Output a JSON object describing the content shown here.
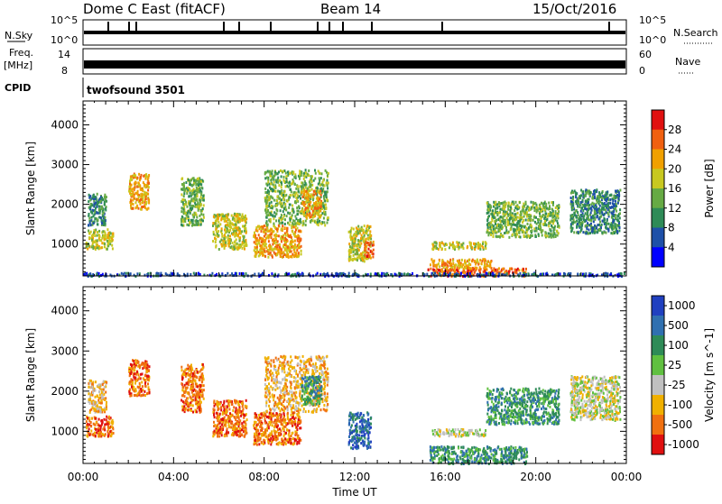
{
  "header": {
    "station": "Dome C East (fitACF)",
    "beam": "Beam 14",
    "date": "15/Oct/2016"
  },
  "strip_labels": {
    "nsky": "N.Sky",
    "nsky_top": "10^5",
    "nsky_bottom": "10^0",
    "nsearch": "N.Search",
    "nsearch_top": "10^5",
    "nsearch_bottom": "10^0",
    "freq_line1": "Freq.",
    "freq_line2": "[MHz]",
    "freq_top": "14",
    "freq_bottom": "8",
    "nave": "Nave",
    "nave_top": "60",
    "nave_bottom": "0",
    "cpid": "CPID",
    "cpid_value": "twofsound 3501"
  },
  "chart_data": [
    {
      "type": "heatmap",
      "name": "power-panel",
      "xlabel": "",
      "ylabel": "Slant Range [km]",
      "xlim": [
        0,
        24
      ],
      "ylim": [
        200,
        4600
      ],
      "y_ticks": [
        "1000",
        "2000",
        "3000",
        "4000"
      ],
      "colorbar_label": "Power [dB]",
      "colorbar_ticks": [
        "4",
        "8",
        "12",
        "16",
        "20",
        "24",
        "28"
      ],
      "colors": [
        "#0000ff",
        "#1e50a8",
        "#2e8b57",
        "#66aa44",
        "#c8c820",
        "#f0a000",
        "#f06010",
        "#e01010"
      ],
      "blobs": [
        {
          "t0": 0.1,
          "t1": 1.3,
          "r0": 900,
          "r1": 1400,
          "v": 4
        },
        {
          "t0": 0.2,
          "t1": 1.0,
          "r0": 1500,
          "r1": 2300,
          "v": 2
        },
        {
          "t0": 2.0,
          "t1": 2.9,
          "r0": 1900,
          "r1": 2800,
          "v": 5
        },
        {
          "t0": 4.3,
          "t1": 5.3,
          "r0": 1500,
          "r1": 2700,
          "v": 3
        },
        {
          "t0": 5.7,
          "t1": 7.2,
          "r0": 900,
          "r1": 1800,
          "v": 4
        },
        {
          "t0": 7.5,
          "t1": 9.6,
          "r0": 700,
          "r1": 1500,
          "v": 5
        },
        {
          "t0": 8.0,
          "t1": 10.8,
          "r0": 1500,
          "r1": 2900,
          "v": 3
        },
        {
          "t0": 9.6,
          "t1": 10.5,
          "r0": 1700,
          "r1": 2400,
          "v": 5
        },
        {
          "t0": 11.7,
          "t1": 12.7,
          "r0": 600,
          "r1": 1500,
          "v": 4
        },
        {
          "t0": 12.4,
          "t1": 12.8,
          "r0": 700,
          "r1": 1100,
          "v": 6
        },
        {
          "t0": 15.2,
          "t1": 19.6,
          "r0": 220,
          "r1": 420,
          "v": 6
        },
        {
          "t0": 15.3,
          "t1": 18.0,
          "r0": 420,
          "r1": 650,
          "v": 5
        },
        {
          "t0": 15.4,
          "t1": 17.8,
          "r0": 900,
          "r1": 1080,
          "v": 4
        },
        {
          "t0": 17.8,
          "t1": 21.0,
          "r0": 1200,
          "r1": 2100,
          "v": 3
        },
        {
          "t0": 21.5,
          "t1": 23.7,
          "r0": 1300,
          "r1": 2400,
          "v": 2
        },
        {
          "t0": 0.0,
          "t1": 24.0,
          "r0": 220,
          "r1": 300,
          "v": 1
        }
      ]
    },
    {
      "type": "heatmap",
      "name": "velocity-panel",
      "xlabel": "Time UT",
      "ylabel": "Slant Range [km]",
      "xlim": [
        0,
        24
      ],
      "ylim": [
        200,
        4600
      ],
      "x_ticks": [
        "00:00",
        "04:00",
        "08:00",
        "12:00",
        "16:00",
        "20:00",
        "00:00"
      ],
      "y_ticks": [
        "1000",
        "2000",
        "3000",
        "4000"
      ],
      "colorbar_label": "Velocity [m s^-1]",
      "colorbar_ticks": [
        "1000",
        "500",
        "100",
        "25",
        "-25",
        "-100",
        "-500",
        "-1000"
      ],
      "colors": [
        "#2040c0",
        "#3070b0",
        "#2e8b57",
        "#60c040",
        "#c0c0c0",
        "#f0b000",
        "#f07010",
        "#e01010"
      ],
      "blobs": [
        {
          "t0": 0.1,
          "t1": 1.3,
          "r0": 900,
          "r1": 1400,
          "v": 6
        },
        {
          "t0": 0.2,
          "t1": 1.0,
          "r0": 1500,
          "r1": 2300,
          "v": 5
        },
        {
          "t0": 2.0,
          "t1": 2.9,
          "r0": 1900,
          "r1": 2800,
          "v": 6
        },
        {
          "t0": 4.3,
          "t1": 5.3,
          "r0": 1500,
          "r1": 2700,
          "v": 6
        },
        {
          "t0": 5.7,
          "t1": 7.2,
          "r0": 900,
          "r1": 1800,
          "v": 6
        },
        {
          "t0": 7.5,
          "t1": 9.6,
          "r0": 700,
          "r1": 1500,
          "v": 6
        },
        {
          "t0": 8.0,
          "t1": 10.8,
          "r0": 1500,
          "r1": 2900,
          "v": 5
        },
        {
          "t0": 9.6,
          "t1": 10.5,
          "r0": 1700,
          "r1": 2400,
          "v": 2
        },
        {
          "t0": 11.7,
          "t1": 12.7,
          "r0": 600,
          "r1": 1500,
          "v": 1
        },
        {
          "t0": 15.3,
          "t1": 19.6,
          "r0": 220,
          "r1": 650,
          "v": 2
        },
        {
          "t0": 15.4,
          "t1": 17.8,
          "r0": 900,
          "r1": 1080,
          "v": 4
        },
        {
          "t0": 17.8,
          "t1": 21.0,
          "r0": 1200,
          "r1": 2100,
          "v": 2
        },
        {
          "t0": 21.5,
          "t1": 23.7,
          "r0": 1300,
          "r1": 2400,
          "v": 4
        }
      ]
    }
  ]
}
